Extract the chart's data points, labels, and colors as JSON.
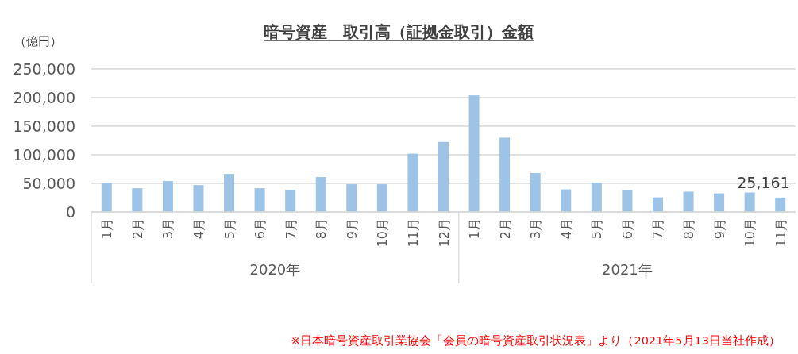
{
  "chart_data": {
    "type": "bar",
    "title": "暗号資産　取引高（証拠金取引）金額",
    "ylabel": "（億円）",
    "categories": [
      "1月",
      "2月",
      "3月",
      "4月",
      "5月",
      "6月",
      "7月",
      "8月",
      "9月",
      "10月",
      "11月",
      "12月",
      "1月",
      "2月",
      "3月",
      "4月",
      "5月",
      "6月",
      "7月",
      "8月",
      "9月",
      "10月",
      "11月"
    ],
    "values": [
      51000,
      41500,
      54000,
      47000,
      66500,
      41500,
      38500,
      61000,
      48500,
      48500,
      102000,
      122500,
      204000,
      130000,
      68000,
      39500,
      51500,
      38000,
      25500,
      35500,
      32500,
      34000,
      25161
    ],
    "value_labels": [
      null,
      null,
      null,
      null,
      null,
      null,
      null,
      null,
      null,
      null,
      null,
      null,
      null,
      null,
      null,
      null,
      null,
      null,
      null,
      null,
      null,
      null,
      "25,161"
    ],
    "color": "#9dc3e6",
    "ylim": [
      0,
      250000
    ],
    "yticks": [
      {
        "value": 0,
        "label": "0"
      },
      {
        "value": 50000,
        "label": "50,000"
      },
      {
        "value": 100000,
        "label": "100,000"
      },
      {
        "value": 150000,
        "label": "150,000"
      },
      {
        "value": 200000,
        "label": "200,000"
      },
      {
        "value": 250000,
        "label": "250,000"
      }
    ],
    "grid": "y",
    "annotations": [
      "2020年",
      "2021年",
      "※日本暗号資産取引業協会「会員の暗号資産取引状況表」より（2021年5月13日当社作成）"
    ]
  }
}
